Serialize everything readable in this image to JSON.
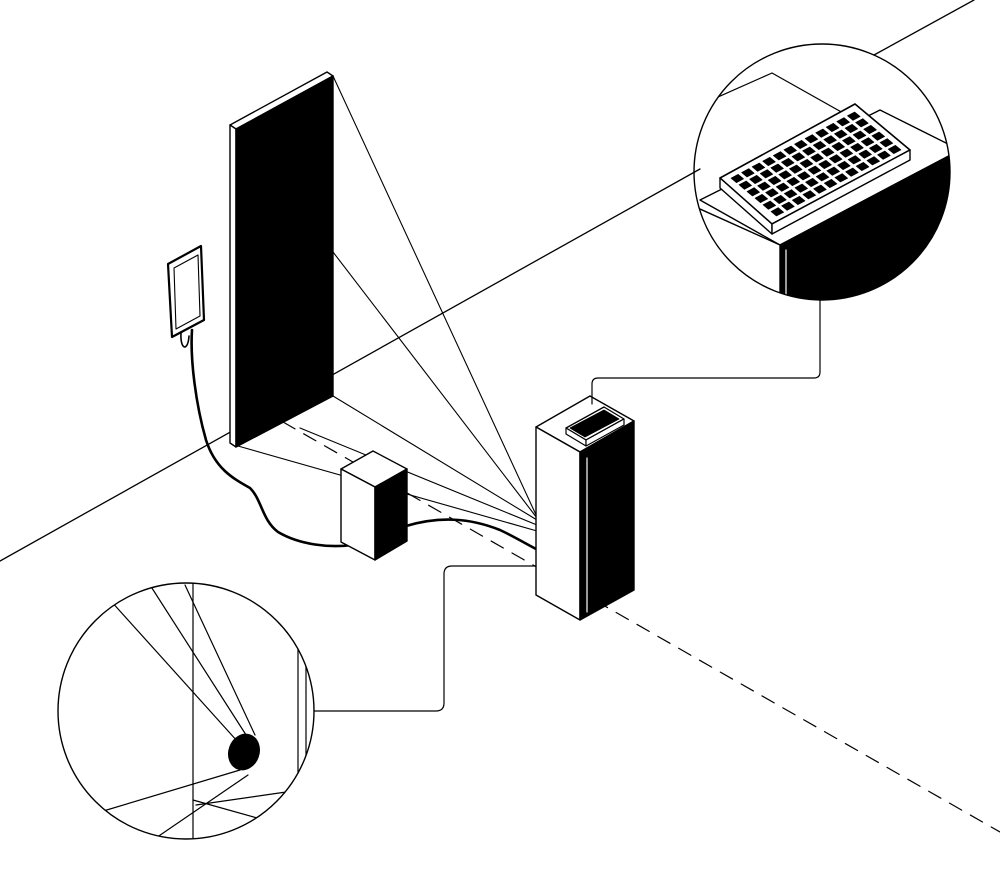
{
  "colors": {
    "ink": "#000000",
    "paper": "#ffffff"
  },
  "parts": {
    "floor": "floor-line",
    "wall_edge": "wall-edge-line",
    "axis": "dashed-axis-line",
    "screen": "tall-black-screen-panel",
    "tablet": "wall-mounted-tablet",
    "cable": "tablet-cable",
    "speaker": "small-speaker-box",
    "tower": "tall-tower-unit",
    "keyboard": "keyboard-on-tower",
    "beams": "projection-beam-lines",
    "lens_zoom": "lens-detail-callout",
    "keyboard_zoom": "keyboard-detail-callout"
  },
  "icons": {
    "keyboard": "keyboard-icon",
    "lens": "camera-lens-icon",
    "speaker": "speaker-icon",
    "tablet": "tablet-icon"
  }
}
